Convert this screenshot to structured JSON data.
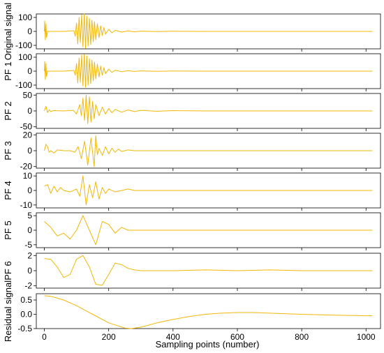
{
  "chart_data": {
    "type": "line",
    "xlabel": "Sampling points (number)",
    "xlim": [
      -25,
      1045
    ],
    "x_ticks": [
      0,
      200,
      400,
      600,
      800,
      1000
    ],
    "line_color": "#f2b705",
    "panels": [
      {
        "ylabel": "Original signal",
        "ylim": [
          -125,
          125
        ],
        "y_ticks": [
          100,
          0,
          -100
        ],
        "series": [
          {
            "x": [
              0,
              1,
              3,
              5,
              7,
              10,
              20,
              60,
              92,
              96,
              100,
              104,
              108,
              112,
              116,
              120,
              124,
              128,
              132,
              136,
              140,
              144,
              148,
              152,
              156,
              160,
              165,
              170,
              175,
              180,
              185,
              190,
              200,
              210,
              220,
              240,
              260,
              280,
              300,
              350,
              400,
              500,
              600,
              700,
              800,
              900,
              1000,
              1020
            ],
            "y": [
              0,
              75,
              -60,
              55,
              -45,
              0,
              0,
              0,
              5,
              -35,
              60,
              -90,
              100,
              -80,
              120,
              -110,
              125,
              -120,
              110,
              -105,
              95,
              -95,
              80,
              -75,
              70,
              -60,
              55,
              -45,
              40,
              -30,
              28,
              -20,
              15,
              -10,
              8,
              -5,
              4,
              -3,
              2,
              -1,
              1,
              0,
              0,
              0,
              0,
              0,
              0,
              0
            ]
          }
        ]
      },
      {
        "ylabel": "PF 1",
        "ylim": [
          -125,
          125
        ],
        "y_ticks": [
          100,
          0,
          -100
        ],
        "series": [
          {
            "x": [
              0,
              1,
              3,
              5,
              7,
              10,
              20,
              60,
              92,
              96,
              100,
              104,
              108,
              112,
              116,
              120,
              124,
              128,
              132,
              136,
              140,
              144,
              148,
              152,
              156,
              160,
              165,
              170,
              175,
              180,
              185,
              190,
              200,
              210,
              220,
              240,
              260,
              280,
              300,
              350,
              400,
              500,
              600,
              700,
              800,
              900,
              1000,
              1020
            ],
            "y": [
              0,
              70,
              -60,
              55,
              -40,
              0,
              0,
              0,
              5,
              -30,
              55,
              -85,
              95,
              -80,
              115,
              -105,
              120,
              -115,
              110,
              -100,
              90,
              -90,
              80,
              -70,
              65,
              -55,
              50,
              -42,
              36,
              -28,
              25,
              -18,
              14,
              -9,
              7,
              -4,
              3,
              -2,
              2,
              -1,
              1,
              0,
              0,
              0,
              0,
              0,
              0,
              0
            ]
          }
        ]
      },
      {
        "ylabel": "PF 2",
        "ylim": [
          -55,
          55
        ],
        "y_ticks": [
          50,
          0,
          -50
        ],
        "series": [
          {
            "x": [
              0,
              5,
              10,
              15,
              20,
              25,
              30,
              60,
              90,
              100,
              110,
              115,
              120,
              125,
              130,
              135,
              140,
              145,
              150,
              155,
              160,
              170,
              180,
              190,
              200,
              210,
              220,
              240,
              260,
              280,
              300,
              350,
              400,
              500,
              600,
              700,
              800,
              900,
              1000,
              1020
            ],
            "y": [
              0,
              15,
              -5,
              3,
              -2,
              0,
              1,
              0,
              2,
              -10,
              20,
              -15,
              40,
              -30,
              50,
              -40,
              45,
              -35,
              30,
              -25,
              20,
              -15,
              12,
              -10,
              8,
              -6,
              5,
              -4,
              3,
              -2,
              2,
              -1,
              1,
              0,
              0,
              0,
              0,
              0,
              0,
              0
            ]
          }
        ]
      },
      {
        "ylabel": "PF 3",
        "ylim": [
          -22,
          22
        ],
        "y_ticks": [
          20,
          0,
          -20
        ],
        "series": [
          {
            "x": [
              0,
              5,
              10,
              15,
              20,
              30,
              40,
              60,
              80,
              95,
              105,
              115,
              125,
              135,
              145,
              155,
              160,
              165,
              170,
              180,
              190,
              200,
              210,
              220,
              230,
              240,
              260,
              280,
              300,
              350,
              400,
              500,
              600,
              700,
              800,
              900,
              1000,
              1020
            ],
            "y": [
              0,
              8,
              5,
              -2,
              0,
              -3,
              1,
              0,
              0,
              -2,
              5,
              -10,
              12,
              -18,
              16,
              -20,
              19,
              -5,
              3,
              -6,
              5,
              -4,
              3,
              -2,
              2,
              -1,
              1,
              0,
              0,
              0,
              0,
              0,
              0,
              0,
              0,
              0,
              0,
              0
            ]
          }
        ]
      },
      {
        "ylabel": "PF 4",
        "ylim": [
          -12,
          12
        ],
        "y_ticks": [
          10,
          0,
          -10
        ],
        "series": [
          {
            "x": [
              0,
              10,
              20,
              30,
              40,
              50,
              60,
              80,
              100,
              110,
              120,
              130,
              140,
              150,
              160,
              170,
              180,
              190,
              200,
              220,
              240,
              260,
              280,
              300,
              400,
              500,
              600,
              700,
              800,
              900,
              1000,
              1020
            ],
            "y": [
              3,
              4,
              -2,
              3,
              -1,
              2,
              0,
              -1,
              1,
              -4,
              10,
              -10,
              4,
              -5,
              6,
              -6,
              2,
              -2,
              1,
              -1,
              0,
              1,
              0,
              0,
              0,
              0,
              0,
              0,
              0,
              0,
              0,
              0
            ]
          }
        ]
      },
      {
        "ylabel": "PF 5",
        "ylim": [
          -6,
          6
        ],
        "y_ticks": [
          5,
          0,
          -5
        ],
        "series": [
          {
            "x": [
              0,
              20,
              40,
              60,
              80,
              100,
              120,
              140,
              160,
              180,
              200,
              220,
              240,
              260,
              280,
              300,
              400,
              500,
              600,
              700,
              800,
              900,
              1000,
              1020
            ],
            "y": [
              3,
              1,
              -2,
              -1,
              -3,
              0,
              5,
              0,
              -5,
              3,
              2,
              -1,
              1,
              0,
              0,
              0,
              0,
              0,
              0,
              0,
              0,
              0,
              0,
              0
            ]
          }
        ]
      },
      {
        "ylabel": "PF 6",
        "ylim": [
          -2.3,
          2.3
        ],
        "y_ticks": [
          2,
          0,
          -2
        ],
        "series": [
          {
            "x": [
              0,
              20,
              40,
              60,
              80,
              100,
              120,
              140,
              160,
              180,
              200,
              220,
              240,
              260,
              280,
              300,
              400,
              500,
              600,
              700,
              800,
              900,
              1000,
              1020
            ],
            "y": [
              1.6,
              1.5,
              0.5,
              -0.9,
              -0.5,
              1.5,
              2.0,
              0.5,
              -1.8,
              -1.9,
              -0.5,
              1.0,
              0.8,
              0.3,
              0.1,
              0,
              0,
              0.1,
              0,
              0.1,
              0,
              0,
              0,
              0
            ]
          }
        ]
      },
      {
        "ylabel": "Residual signal",
        "ylim": [
          -0.5,
          0.72
        ],
        "y_ticks": [
          0.5,
          0.0,
          -0.5
        ],
        "y_tick_labels": [
          "0.5",
          "0.0",
          "-0.5"
        ],
        "series": [
          {
            "x": [
              0,
              20,
              60,
              100,
              150,
              200,
              250,
              270,
              300,
              350,
              400,
              450,
              500,
              550,
              600,
              650,
              700,
              800,
              900,
              1000,
              1020
            ],
            "y": [
              0.65,
              0.63,
              0.5,
              0.3,
              0.0,
              -0.3,
              -0.48,
              -0.5,
              -0.45,
              -0.3,
              -0.18,
              -0.08,
              0.0,
              0.04,
              0.06,
              0.06,
              0.04,
              0.0,
              -0.03,
              -0.05,
              -0.05
            ]
          }
        ]
      }
    ]
  }
}
